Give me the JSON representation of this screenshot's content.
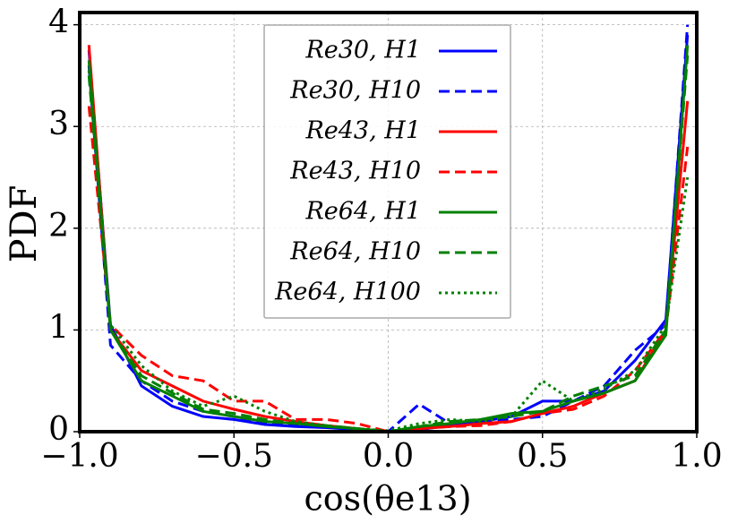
{
  "chart_data": {
    "type": "line",
    "x_label": "cos(θe13)",
    "y_label": "PDF",
    "x": [
      -0.97,
      -0.9,
      -0.8,
      -0.7,
      -0.6,
      -0.5,
      -0.4,
      -0.3,
      -0.2,
      -0.1,
      0,
      0.1,
      0.2,
      0.3,
      0.4,
      0.5,
      0.6,
      0.7,
      0.8,
      0.9,
      0.97
    ],
    "series": [
      {
        "name": "Re30, H1",
        "color": "#0000ff",
        "style": "solid",
        "values": [
          3.75,
          1.05,
          0.45,
          0.25,
          0.15,
          0.12,
          0.07,
          0.05,
          0.04,
          0.02,
          0.0,
          0.02,
          0.06,
          0.1,
          0.15,
          0.3,
          0.3,
          0.4,
          0.7,
          1.1,
          3.9
        ]
      },
      {
        "name": "Re30, H10",
        "color": "#0000ff",
        "style": "dashed",
        "values": [
          3.6,
          0.85,
          0.5,
          0.3,
          0.2,
          0.15,
          0.08,
          0.06,
          0.05,
          0.03,
          0.0,
          0.27,
          0.08,
          0.1,
          0.12,
          0.15,
          0.3,
          0.45,
          0.8,
          1.05,
          4.0
        ]
      },
      {
        "name": "Re43, H1",
        "color": "#ff0000",
        "style": "solid",
        "values": [
          3.8,
          1.0,
          0.6,
          0.45,
          0.3,
          0.22,
          0.15,
          0.1,
          0.06,
          0.03,
          0.0,
          0.03,
          0.05,
          0.08,
          0.1,
          0.18,
          0.25,
          0.38,
          0.5,
          1.0,
          3.25
        ]
      },
      {
        "name": "Re43, H10",
        "color": "#ff0000",
        "style": "dashed",
        "values": [
          3.2,
          1.05,
          0.75,
          0.55,
          0.5,
          0.3,
          0.3,
          0.12,
          0.12,
          0.08,
          0.0,
          0.03,
          0.05,
          0.06,
          0.1,
          0.18,
          0.22,
          0.35,
          0.6,
          1.0,
          2.8
        ]
      },
      {
        "name": "Re64, H1",
        "color": "#008000",
        "style": "solid",
        "values": [
          3.65,
          1.0,
          0.5,
          0.35,
          0.2,
          0.15,
          0.1,
          0.08,
          0.05,
          0.03,
          0.0,
          0.05,
          0.08,
          0.12,
          0.18,
          0.2,
          0.3,
          0.38,
          0.5,
          0.95,
          3.8
        ]
      },
      {
        "name": "Re64, H10",
        "color": "#008000",
        "style": "dashed",
        "values": [
          3.5,
          1.0,
          0.55,
          0.38,
          0.22,
          0.18,
          0.12,
          0.08,
          0.06,
          0.03,
          0.0,
          0.05,
          0.1,
          0.12,
          0.15,
          0.2,
          0.35,
          0.45,
          0.55,
          1.0,
          3.7
        ]
      },
      {
        "name": "Re64, H100",
        "color": "#008000",
        "style": "dotted",
        "values": [
          3.55,
          1.05,
          0.65,
          0.4,
          0.25,
          0.35,
          0.2,
          0.1,
          0.06,
          0.03,
          0.01,
          0.08,
          0.12,
          0.1,
          0.15,
          0.5,
          0.3,
          0.42,
          0.6,
          1.05,
          2.5
        ]
      }
    ],
    "xlim": [
      -1.0,
      1.0
    ],
    "ylim": [
      0,
      4.12
    ],
    "xticks": [
      {
        "value": -1.0,
        "label": "−1.0"
      },
      {
        "value": -0.5,
        "label": "−0.5"
      },
      {
        "value": 0,
        "label": "0.0"
      },
      0.5,
      {
        "value": 1.0,
        "label": "1.0"
      }
    ],
    "yticks": [
      0,
      1,
      2,
      3,
      4
    ],
    "grid": true,
    "legend": "upper center"
  }
}
